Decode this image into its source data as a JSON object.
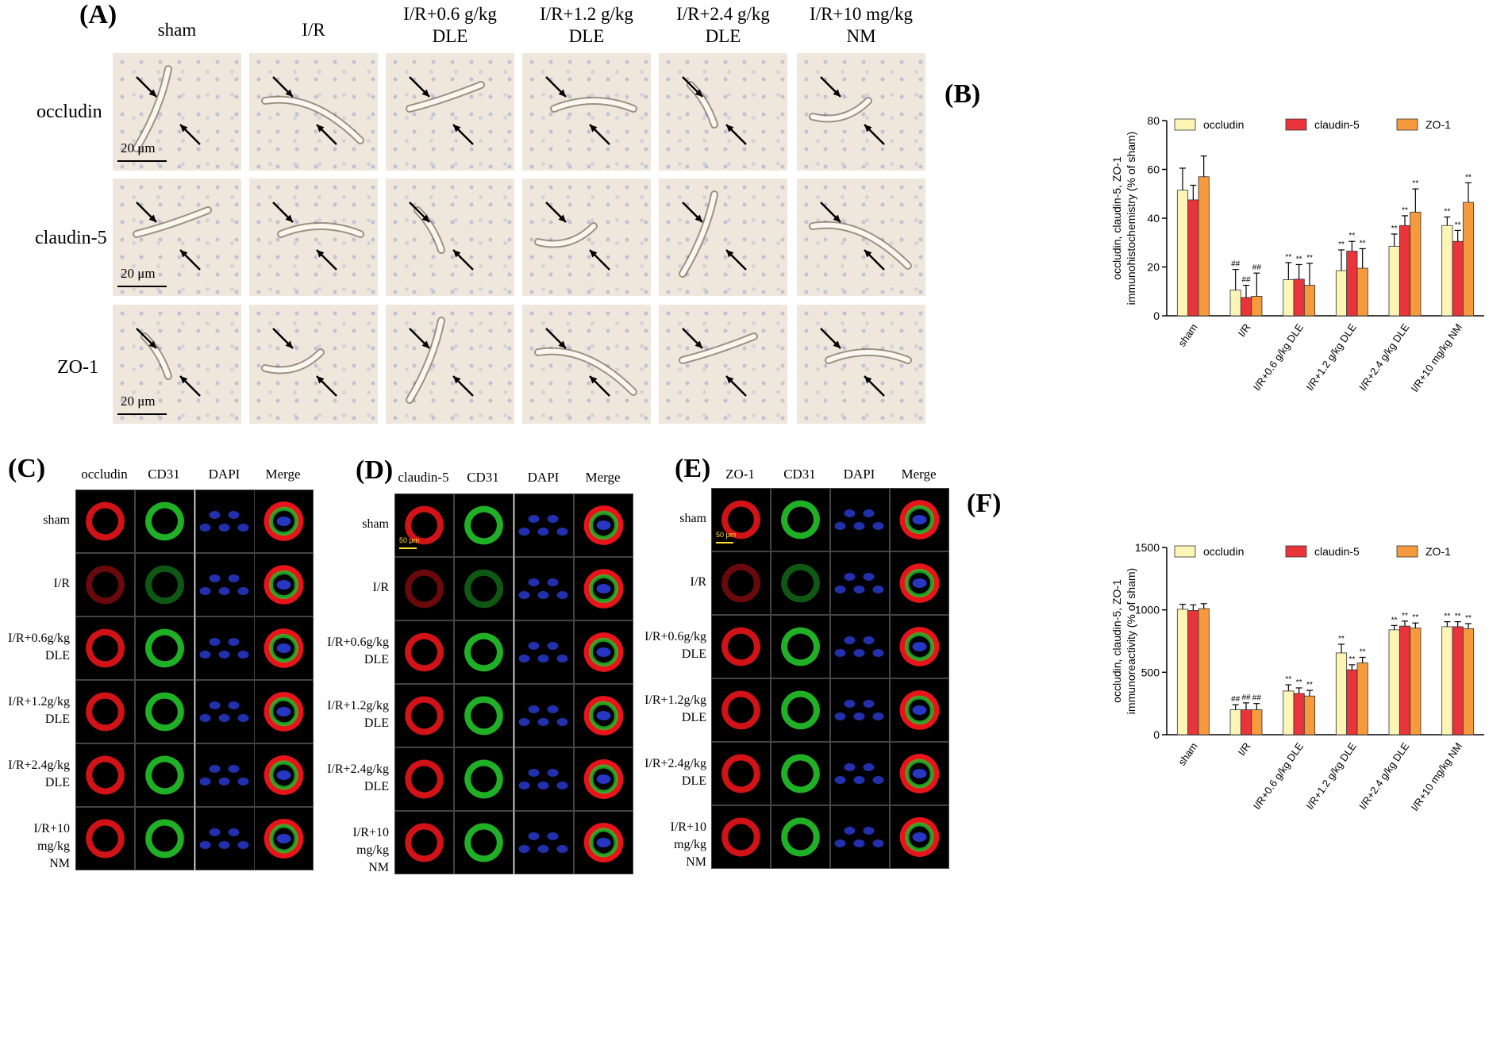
{
  "panels": {
    "A": "(A)",
    "B": "(B)",
    "C": "(C)",
    "D": "(D)",
    "E": "(E)",
    "F": "(F)"
  },
  "panel_a": {
    "columns": [
      {
        "l1": "sham",
        "l2": ""
      },
      {
        "l1": "I/R",
        "l2": ""
      },
      {
        "l1": "I/R+0.6 g/kg",
        "l2": "DLE"
      },
      {
        "l1": "I/R+1.2 g/kg",
        "l2": "DLE"
      },
      {
        "l1": "I/R+2.4 g/kg",
        "l2": "DLE"
      },
      {
        "l1": "I/R+10 mg/kg",
        "l2": "NM"
      }
    ],
    "rows": [
      "occludin",
      "claudin-5",
      "ZO-1"
    ],
    "scale_bar": "20 μm"
  },
  "panel_c": {
    "headers": [
      "occludin",
      "CD31",
      "DAPI",
      "Merge"
    ],
    "rows": [
      {
        "l1": "sham",
        "l2": ""
      },
      {
        "l1": "I/R",
        "l2": ""
      },
      {
        "l1": "I/R+0.6g/kg",
        "l2": "DLE"
      },
      {
        "l1": "I/R+1.2g/kg",
        "l2": "DLE"
      },
      {
        "l1": "I/R+2.4g/kg",
        "l2": "DLE"
      },
      {
        "l1": "I/R+10 mg/kg",
        "l2": "NM"
      }
    ]
  },
  "panel_d": {
    "headers": [
      "claudin-5",
      "CD31",
      "DAPI",
      "Merge"
    ],
    "rows": [
      {
        "l1": "sham",
        "l2": ""
      },
      {
        "l1": "I/R",
        "l2": ""
      },
      {
        "l1": "I/R+0.6g/kg",
        "l2": "DLE"
      },
      {
        "l1": "I/R+1.2g/kg",
        "l2": "DLE"
      },
      {
        "l1": "I/R+2.4g/kg",
        "l2": "DLE"
      },
      {
        "l1": "I/R+10 mg/kg",
        "l2": "NM"
      }
    ],
    "scale_bar": "50 μm"
  },
  "panel_e": {
    "headers": [
      "ZO-1",
      "CD31",
      "DAPI",
      "Merge"
    ],
    "rows": [
      {
        "l1": "sham",
        "l2": ""
      },
      {
        "l1": "I/R",
        "l2": ""
      },
      {
        "l1": "I/R+0.6g/kg",
        "l2": "DLE"
      },
      {
        "l1": "I/R+1.2g/kg",
        "l2": "DLE"
      },
      {
        "l1": "I/R+2.4g/kg",
        "l2": "DLE"
      },
      {
        "l1": "I/R+10 mg/kg",
        "l2": "NM"
      }
    ],
    "scale_bar": "50 μm"
  },
  "colors": {
    "occludin": "#fdf5b5",
    "claudin-5": "#e8343a",
    "ZO-1": "#f59a3d",
    "ihc_background": "#efe7dc",
    "red_channel": "#e8141a",
    "green_channel": "#22c32a",
    "blue_channel": "#2b3cd8"
  },
  "chart_data": [
    {
      "type": "bar",
      "ylabel_1": "occludin, claudin-5, ZO-1",
      "ylabel_2": "immunohistochemistry (% of sham)",
      "ylim": [
        0,
        80
      ],
      "yticks": [
        "0",
        "20",
        "40",
        "60",
        "80"
      ],
      "categories": [
        "sham",
        "I/R",
        "I/R+0.6 g/kg DLE",
        "I/R+1.2 g/kg DLE",
        "I/R+2.4 g/kg DLE",
        "I/R+10 mg/kg NM"
      ],
      "legend_position": "top",
      "series": [
        {
          "name": "occludin",
          "values": [
            51.5,
            10.5,
            14.8,
            18.5,
            28.5,
            37
          ],
          "errors": [
            9,
            8.5,
            7,
            8.5,
            5,
            3.5
          ],
          "annotations": [
            "",
            "##",
            "**",
            "**",
            "**",
            "**"
          ]
        },
        {
          "name": "claudin-5",
          "values": [
            47.5,
            7.5,
            15,
            26.5,
            37,
            30.5
          ],
          "errors": [
            6,
            5,
            6,
            4,
            4,
            4.5
          ],
          "annotations": [
            "",
            "##",
            "**",
            "**",
            "**",
            "**"
          ]
        },
        {
          "name": "ZO-1",
          "values": [
            57,
            8,
            12.5,
            19.5,
            42.5,
            46.5
          ],
          "errors": [
            8.5,
            9.5,
            9,
            8,
            9.5,
            8
          ],
          "annotations": [
            "",
            "##",
            "**",
            "**",
            "**",
            "**"
          ]
        }
      ]
    },
    {
      "type": "bar",
      "ylabel_1": "occludin, claudin-5, ZO-1",
      "ylabel_2": "immunoreactivity (% of sham)",
      "ylim": [
        0,
        1500
      ],
      "yticks": [
        "0",
        "500",
        "1000",
        "1500"
      ],
      "categories": [
        "sham",
        "I/R",
        "I/R+0.6 g/kg DLE",
        "I/R+1.2 g/kg DLE",
        "I/R+2.4 g/kg DLE",
        "I/R+10 mg/kg NM"
      ],
      "legend_position": "top",
      "series": [
        {
          "name": "occludin",
          "values": [
            1005,
            200,
            350,
            655,
            840,
            865
          ],
          "errors": [
            40,
            40,
            50,
            70,
            35,
            40
          ],
          "annotations": [
            "",
            "##",
            "**",
            "**",
            "**",
            "**"
          ]
        },
        {
          "name": "claudin-5",
          "values": [
            995,
            200,
            330,
            520,
            870,
            865
          ],
          "errors": [
            45,
            55,
            45,
            40,
            40,
            40
          ],
          "annotations": [
            "",
            "##",
            "**",
            "**",
            "**",
            "**"
          ]
        },
        {
          "name": "ZO-1",
          "values": [
            1010,
            200,
            310,
            575,
            855,
            850
          ],
          "errors": [
            40,
            50,
            45,
            45,
            40,
            40
          ],
          "annotations": [
            "",
            "##",
            "**",
            "**",
            "**",
            "**"
          ]
        }
      ]
    }
  ]
}
